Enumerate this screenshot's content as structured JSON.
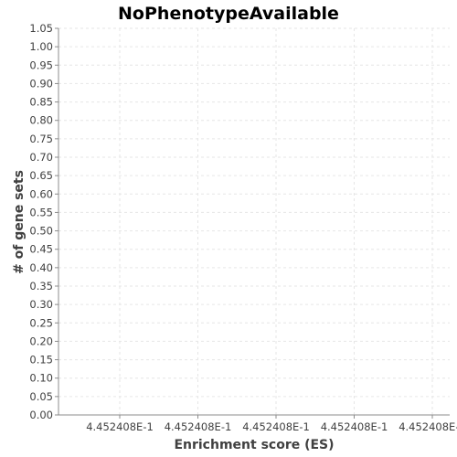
{
  "chart_data": {
    "type": "bar",
    "title": "NoPhenotypeAvailable",
    "xlabel": "Enrichment score (ES)",
    "ylabel": "# of gene sets",
    "ylim": [
      0.0,
      1.05
    ],
    "y_ticks": [
      "0.00",
      "0.05",
      "0.10",
      "0.15",
      "0.20",
      "0.25",
      "0.30",
      "0.35",
      "0.40",
      "0.45",
      "0.50",
      "0.55",
      "0.60",
      "0.65",
      "0.70",
      "0.75",
      "0.80",
      "0.85",
      "0.90",
      "0.95",
      "1.00",
      "1.05"
    ],
    "x_ticks": [
      "4.452408E-1",
      "4.452408E-1",
      "4.452408E-1",
      "4.452408E-1",
      "4.452408E-1"
    ],
    "categories": [],
    "values": [],
    "grid": true,
    "legend": "none"
  }
}
